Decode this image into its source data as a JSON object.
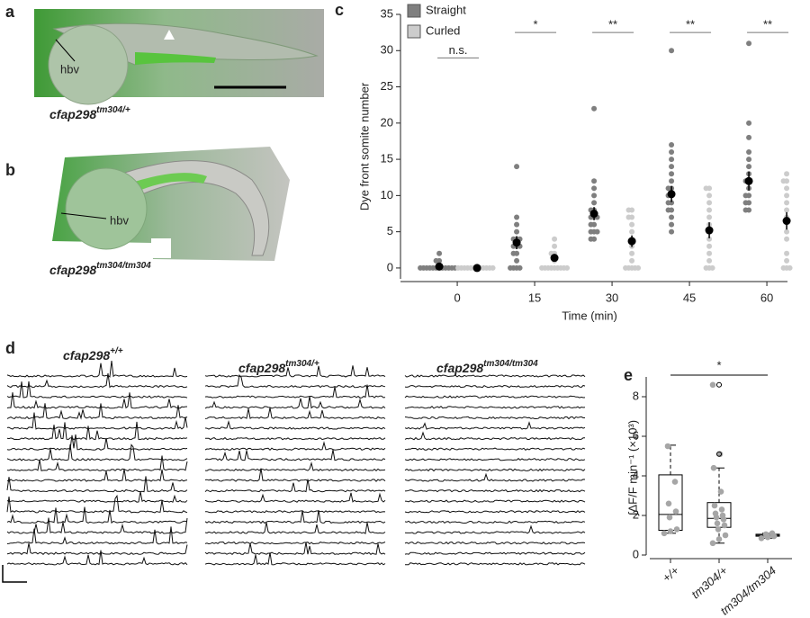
{
  "panels": {
    "a": {
      "label": "a",
      "annotation": "hbv",
      "caption": {
        "gene": "cfap298",
        "allele": "tm304/+"
      }
    },
    "b": {
      "label": "b",
      "annotation": "hbv",
      "caption": {
        "gene": "cfap298",
        "allele": "tm304/tm304"
      }
    },
    "c": {
      "label": "c"
    },
    "d": {
      "label": "d",
      "captions": [
        {
          "gene": "cfap298",
          "allele": "+/+"
        },
        {
          "gene": "cfap298",
          "allele": "tm304/+"
        },
        {
          "gene": "cfap298",
          "allele": "tm304/tm304"
        }
      ]
    },
    "e": {
      "label": "e"
    }
  },
  "chart_data": [
    {
      "type": "strip",
      "xlabel": "Time (min)",
      "ylabel": "Dye front somite number",
      "x": [
        0,
        15,
        30,
        45,
        60
      ],
      "xlim": [
        -11,
        64
      ],
      "xticks": [
        0,
        15,
        30,
        45,
        60
      ],
      "ylim": [
        -1.5,
        35
      ],
      "yticks": [
        0,
        5,
        10,
        15,
        20,
        25,
        30,
        35
      ],
      "legend": "upper left",
      "mean_color": "#000000",
      "series": [
        {
          "name": "Straight",
          "color": "#7f7f7f",
          "points": [
            [
              0,
              0,
              0,
              0,
              0,
              0,
              0,
              0,
              0,
              0,
              0,
              0,
              1,
              1,
              2
            ],
            [
              0,
              0,
              0,
              0,
              1,
              2,
              2,
              3,
              3,
              3,
              4,
              4,
              4,
              5,
              6,
              7,
              14
            ],
            [
              4,
              4,
              5,
              5,
              5,
              6,
              6,
              7,
              7,
              7,
              8,
              8,
              9,
              10,
              11,
              12,
              22
            ],
            [
              5,
              6,
              7,
              8,
              8,
              9,
              9,
              10,
              10,
              11,
              11,
              12,
              13,
              14,
              15,
              16,
              17,
              30
            ],
            [
              8,
              8,
              9,
              9,
              10,
              10,
              11,
              12,
              12,
              13,
              14,
              15,
              16,
              18,
              20,
              31
            ]
          ],
          "values": [
            0.2,
            3.5,
            7.5,
            10.2,
            12
          ],
          "errors": [
            0.2,
            0.9,
            0.9,
            1.1,
            1.3
          ]
        },
        {
          "name": "Curled",
          "color": "#cccccc",
          "points": [
            [
              0,
              0,
              0,
              0,
              0,
              0,
              0,
              0,
              0,
              0,
              0,
              0
            ],
            [
              0,
              0,
              0,
              0,
              0,
              0,
              0,
              0,
              0,
              1,
              2,
              2,
              3,
              4
            ],
            [
              0,
              0,
              0,
              0,
              0,
              1,
              2,
              3,
              4,
              5,
              6,
              7,
              7,
              8,
              8
            ],
            [
              0,
              0,
              0,
              1,
              2,
              3,
              4,
              5,
              6,
              7,
              8,
              9,
              10,
              11,
              11
            ],
            [
              0,
              0,
              0,
              1,
              2,
              4,
              5,
              7,
              8,
              9,
              10,
              11,
              12,
              12,
              13
            ]
          ],
          "values": [
            0,
            1.4,
            3.7,
            5.2,
            6.5
          ],
          "errors": [
            0,
            0.4,
            0.8,
            1.1,
            1.2
          ]
        }
      ],
      "annotations": [
        "n.s.",
        "*",
        "**",
        "**",
        "**"
      ]
    },
    {
      "type": "box",
      "ylabel": "∫ΔF/F min⁻¹ (×10³)",
      "categories": [
        "+/+",
        "tm304/+",
        "tm304/tm304"
      ],
      "ylim": [
        0,
        9
      ],
      "yticks": [
        0,
        2,
        4,
        6,
        8
      ],
      "color": "#a6a6a6",
      "whisker_low": [
        1.1,
        0.6,
        0.85
      ],
      "q1": [
        1.25,
        1.4,
        0.95
      ],
      "median": [
        2.05,
        1.85,
        1.0
      ],
      "q3": [
        4.05,
        2.65,
        1.05
      ],
      "whisker_high": [
        5.55,
        4.4,
        1.1
      ],
      "outliers": [
        [],
        [
          5.1,
          8.6
        ],
        []
      ],
      "points": [
        [
          1.1,
          1.2,
          1.3,
          1.9,
          2.2,
          2.6,
          3.7,
          5.5
        ],
        [
          0.6,
          0.8,
          1.0,
          1.3,
          1.5,
          1.6,
          1.8,
          1.9,
          2.0,
          2.1,
          2.3,
          2.5,
          3.2,
          4.4,
          5.1,
          8.6
        ],
        [
          0.85,
          0.9,
          0.95,
          1.0,
          1.0,
          1.05,
          1.1
        ]
      ],
      "annotation": "*"
    }
  ]
}
